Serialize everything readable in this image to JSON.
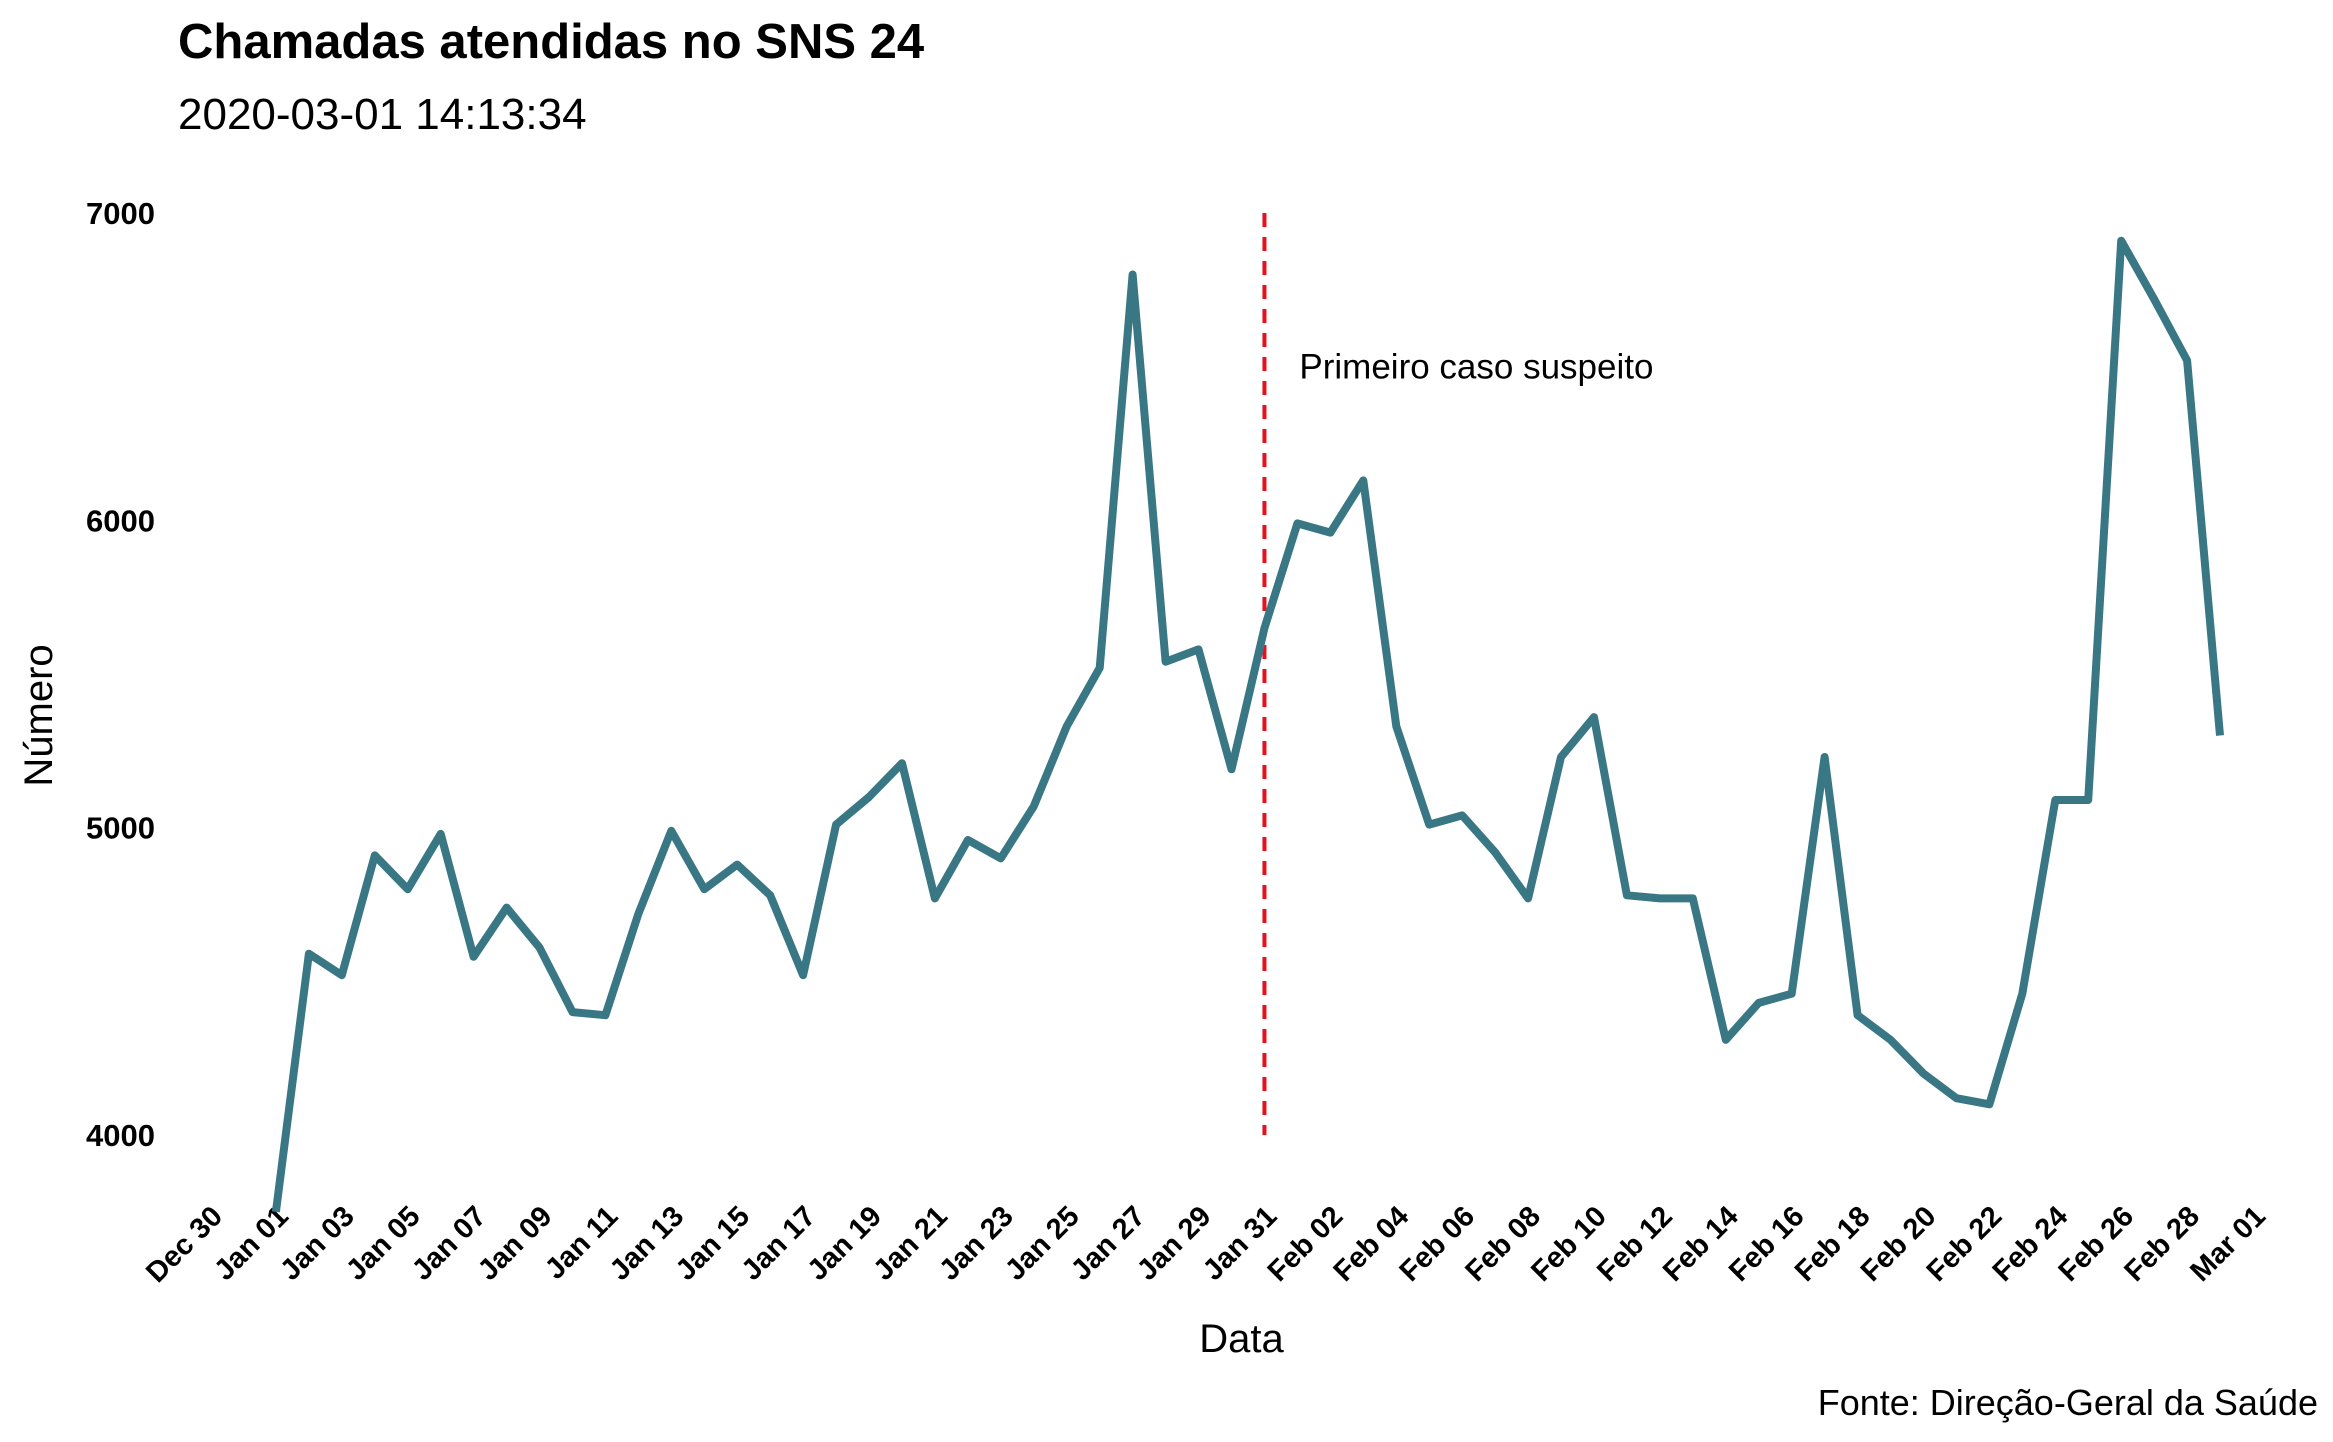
{
  "chart_data": {
    "type": "line",
    "title": "Chamadas atendidas no SNS 24",
    "subtitle": "2020-03-01 14:13:34",
    "caption": "Fonte: Direção-Geral da Saúde",
    "xlabel": "Data",
    "ylabel": "Número",
    "xlim": [
      "2019-12-30",
      "2020-03-01"
    ],
    "ylim": [
      3600,
      7000
    ],
    "yticks": [
      4000,
      5000,
      6000,
      7000
    ],
    "x_tick_labels": [
      "Dec 30",
      "Jan 01",
      "Jan 03",
      "Jan 05",
      "Jan 07",
      "Jan 09",
      "Jan 11",
      "Jan 13",
      "Jan 15",
      "Jan 17",
      "Jan 19",
      "Jan 21",
      "Jan 23",
      "Jan 25",
      "Jan 27",
      "Jan 29",
      "Jan 31",
      "Feb 02",
      "Feb 04",
      "Feb 06",
      "Feb 08",
      "Feb 10",
      "Feb 12",
      "Feb 14",
      "Feb 16",
      "Feb 18",
      "Feb 20",
      "Feb 22",
      "Feb 24",
      "Feb 26",
      "Feb 28",
      "Mar 01"
    ],
    "grid": false,
    "line_color": "#3a7785",
    "series": [
      {
        "x": [
          "2020-01-01",
          "2020-01-02",
          "2020-01-03",
          "2020-01-04",
          "2020-01-05",
          "2020-01-06",
          "2020-01-07",
          "2020-01-08",
          "2020-01-09",
          "2020-01-10",
          "2020-01-11",
          "2020-01-12",
          "2020-01-13",
          "2020-01-14",
          "2020-01-15",
          "2020-01-16",
          "2020-01-17",
          "2020-01-18",
          "2020-01-19",
          "2020-01-20",
          "2020-01-21",
          "2020-01-22",
          "2020-01-23",
          "2020-01-24",
          "2020-01-25",
          "2020-01-26",
          "2020-01-27",
          "2020-01-28",
          "2020-01-29",
          "2020-01-30",
          "2020-01-31",
          "2020-02-01",
          "2020-02-02",
          "2020-02-03",
          "2020-02-04",
          "2020-02-05",
          "2020-02-06",
          "2020-02-07",
          "2020-02-08",
          "2020-02-09",
          "2020-02-10",
          "2020-02-11",
          "2020-02-12",
          "2020-02-13",
          "2020-02-14",
          "2020-02-15",
          "2020-02-16",
          "2020-02-17",
          "2020-02-18",
          "2020-02-19",
          "2020-02-20",
          "2020-02-21",
          "2020-02-22",
          "2020-02-23",
          "2020-02-24",
          "2020-02-25",
          "2020-02-26",
          "2020-02-27",
          "2020-02-28",
          "2020-02-29"
        ],
        "values": [
          3750,
          4590,
          4520,
          4910,
          4800,
          4980,
          4580,
          4740,
          4610,
          4400,
          4390,
          4720,
          4990,
          4800,
          4880,
          4780,
          4520,
          5010,
          5100,
          5210,
          4770,
          4960,
          4900,
          5070,
          5330,
          5520,
          6800,
          5540,
          5580,
          5190,
          5650,
          5990,
          5960,
          6130,
          5330,
          5010,
          5040,
          4920,
          4770,
          5230,
          5360,
          4780,
          4770,
          4770,
          4310,
          4430,
          4460,
          5230,
          4390,
          4310,
          4200,
          4120,
          4100,
          4460,
          5090,
          5090,
          6910,
          6720,
          6520,
          5300
        ]
      }
    ],
    "annotations": [
      {
        "type": "vline",
        "x": "2020-01-31",
        "y_range": [
          4000,
          7000
        ],
        "color": "#e8101c",
        "style": "dashed"
      },
      {
        "type": "text",
        "x": "2020-02-01",
        "y": 6500,
        "text": "Primeiro caso suspeito"
      }
    ]
  }
}
